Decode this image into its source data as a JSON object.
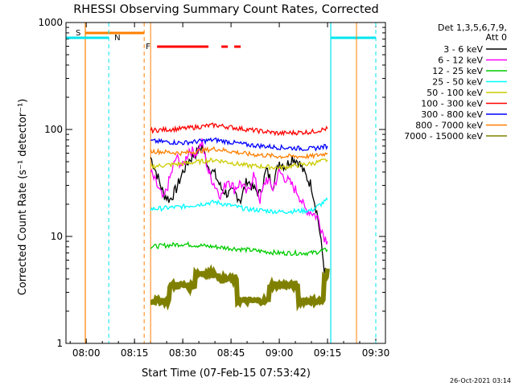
{
  "chart_data": {
    "type": "line",
    "title": "RHESSI Observing Summary Count Rates, Corrected",
    "xlabel": "Start Time (07-Feb-15 07:53:42)",
    "ylabel": "Corrected Count Rate (s⁻¹ detector⁻¹)",
    "xlim": [
      "07:53:42",
      "09:33"
    ],
    "ylim": [
      1,
      1000
    ],
    "yscale": "log",
    "x_ticks": [
      "08:00",
      "08:15",
      "08:30",
      "08:45",
      "09:00",
      "09:15",
      "09:30"
    ],
    "y_ticks": [
      "1",
      "10",
      "100",
      "1000"
    ],
    "legend_header": [
      "Det 1,3,5,6,7,9,",
      "Att 0"
    ],
    "legend_position": "right",
    "timestamp": "26-Oct-2021 03:14",
    "annotations": {
      "saa": "S",
      "night": "N",
      "flare": "F"
    },
    "saa_intervals": [
      [
        "07:53:42",
        "08:18"
      ]
    ],
    "night_intervals": [
      [
        "07:53:42",
        "08:07"
      ],
      [
        "09:16",
        "09:30"
      ]
    ],
    "flare_segments": [
      [
        "08:22",
        "08:38"
      ],
      [
        "08:42",
        "08:44"
      ],
      [
        "08:46",
        "08:48"
      ]
    ],
    "data_gaps": [
      [
        "08:18",
        "08:20"
      ],
      [
        "09:16",
        "09:24"
      ]
    ],
    "series": [
      {
        "name": "3 - 6 keV",
        "color": "#000000",
        "t": [
          "08:20",
          "08:22",
          "08:24",
          "08:26",
          "08:28",
          "08:30",
          "08:32",
          "08:34",
          "08:36",
          "08:38",
          "08:40",
          "08:42",
          "08:44",
          "08:46",
          "08:48",
          "08:50",
          "08:52",
          "08:54",
          "08:56",
          "08:58",
          "09:00",
          "09:02",
          "09:04",
          "09:06",
          "09:08",
          "09:10",
          "09:12",
          "09:14",
          "09:15"
        ],
        "values": [
          55,
          38,
          25,
          22,
          28,
          40,
          52,
          60,
          70,
          45,
          38,
          28,
          25,
          26,
          22,
          34,
          28,
          25,
          42,
          30,
          50,
          45,
          55,
          50,
          38,
          30,
          15,
          5,
          4
        ]
      },
      {
        "name": "6 - 12 keV",
        "color": "#ff00ff",
        "t": [
          "08:20",
          "08:22",
          "08:24",
          "08:26",
          "08:28",
          "08:30",
          "08:32",
          "08:34",
          "08:36",
          "08:38",
          "08:40",
          "08:42",
          "08:44",
          "08:46",
          "08:48",
          "08:50",
          "08:52",
          "08:54",
          "08:56",
          "08:58",
          "09:00",
          "09:02",
          "09:04",
          "09:06",
          "09:08",
          "09:10",
          "09:12",
          "09:14",
          "09:15"
        ],
        "values": [
          40,
          30,
          22,
          35,
          55,
          45,
          65,
          60,
          75,
          40,
          30,
          24,
          35,
          28,
          32,
          25,
          38,
          22,
          35,
          28,
          40,
          35,
          30,
          25,
          18,
          17,
          15,
          10,
          9
        ]
      },
      {
        "name": "12 - 25 keV",
        "color": "#00cc00",
        "t": [
          "08:20",
          "08:30",
          "08:40",
          "08:50",
          "09:00",
          "09:10",
          "09:15"
        ],
        "values": [
          8,
          8.5,
          8,
          7.5,
          7,
          7,
          7.5
        ]
      },
      {
        "name": "25 - 50 keV",
        "color": "#00ffff",
        "t": [
          "08:20",
          "08:30",
          "08:40",
          "08:50",
          "09:00",
          "09:10",
          "09:15"
        ],
        "values": [
          18,
          19,
          21,
          18,
          17,
          17.5,
          22
        ]
      },
      {
        "name": "50 - 100 keV",
        "color": "#cccc00",
        "t": [
          "08:20",
          "08:30",
          "08:40",
          "08:50",
          "09:00",
          "09:10",
          "09:15"
        ],
        "values": [
          45,
          48,
          52,
          46,
          44,
          48,
          52
        ]
      },
      {
        "name": "100 - 300 keV",
        "color": "#ff0000",
        "t": [
          "08:20",
          "08:30",
          "08:40",
          "08:50",
          "09:00",
          "09:10",
          "09:15"
        ],
        "values": [
          98,
          102,
          110,
          100,
          92,
          95,
          102
        ]
      },
      {
        "name": "300 - 800 keV",
        "color": "#0000ff",
        "t": [
          "08:20",
          "08:30",
          "08:40",
          "08:50",
          "09:00",
          "09:10",
          "09:15"
        ],
        "values": [
          78,
          75,
          80,
          72,
          68,
          66,
          70
        ]
      },
      {
        "name": "800 - 7000 keV",
        "color": "#ff7f00",
        "t": [
          "08:20",
          "08:30",
          "08:40",
          "08:50",
          "09:00",
          "09:10",
          "09:15"
        ],
        "values": [
          63,
          60,
          66,
          59,
          56,
          56,
          60
        ]
      },
      {
        "name": "7000 - 15000 keV",
        "color": "#808000",
        "t": [
          "08:20",
          "08:25",
          "08:26",
          "08:33",
          "08:34",
          "08:40",
          "08:41",
          "08:46",
          "08:47",
          "08:56",
          "08:57",
          "09:05",
          "09:06",
          "09:13",
          "09:14",
          "09:15"
        ],
        "values": [
          2.5,
          2.5,
          3.5,
          3.5,
          4.5,
          4.5,
          4,
          4,
          2.5,
          2.5,
          3.5,
          3.5,
          2.5,
          2.5,
          4,
          5
        ]
      }
    ]
  }
}
